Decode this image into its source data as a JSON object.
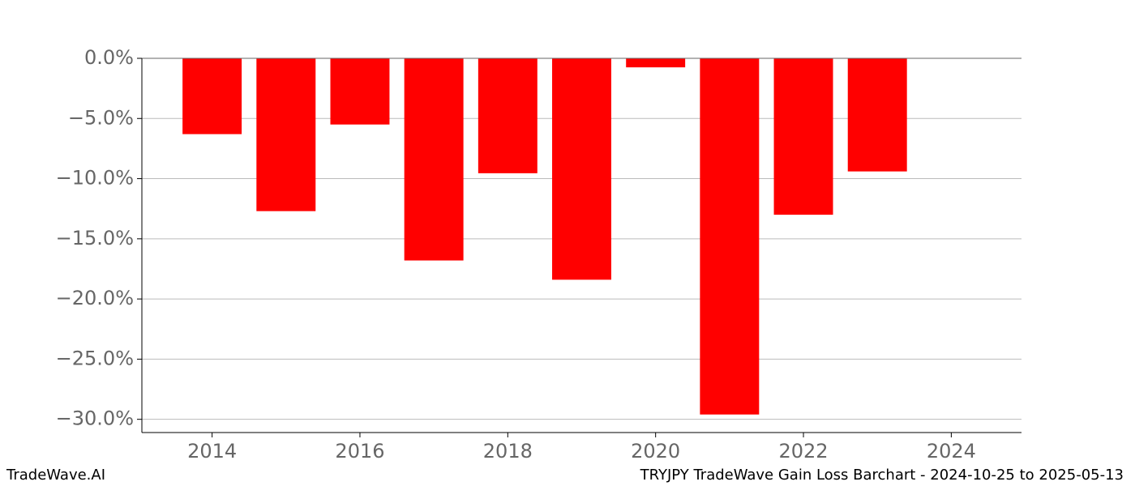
{
  "chart_data": {
    "type": "bar",
    "title": "TRYJPY TradeWave Gain Loss Barchart - 2024-10-25 to 2025-05-13",
    "brand": "TradeWave.AI",
    "x": [
      2014,
      2015,
      2016,
      2017,
      2018,
      2019,
      2020,
      2021,
      2022,
      2023
    ],
    "values": [
      -6.3,
      -12.7,
      -5.5,
      -16.8,
      -9.55,
      -18.4,
      -0.75,
      -29.6,
      -13.0,
      -9.4
    ],
    "color": "#ff0000",
    "xlim": [
      2013.05,
      2024.95
    ],
    "xticks": [
      2014,
      2016,
      2018,
      2020,
      2022,
      2024
    ],
    "ylim": [
      -31.1,
      0
    ],
    "yticks": [
      {
        "value": 0,
        "label": "0.0%"
      },
      {
        "value": -5,
        "label": "−5.0%"
      },
      {
        "value": -10,
        "label": "−10.0%"
      },
      {
        "value": -15,
        "label": "−15.0%"
      },
      {
        "value": -20,
        "label": "−20.0%"
      },
      {
        "value": -25,
        "label": "−25.0%"
      },
      {
        "value": -30,
        "label": "−30.0%"
      }
    ],
    "grid": true
  }
}
